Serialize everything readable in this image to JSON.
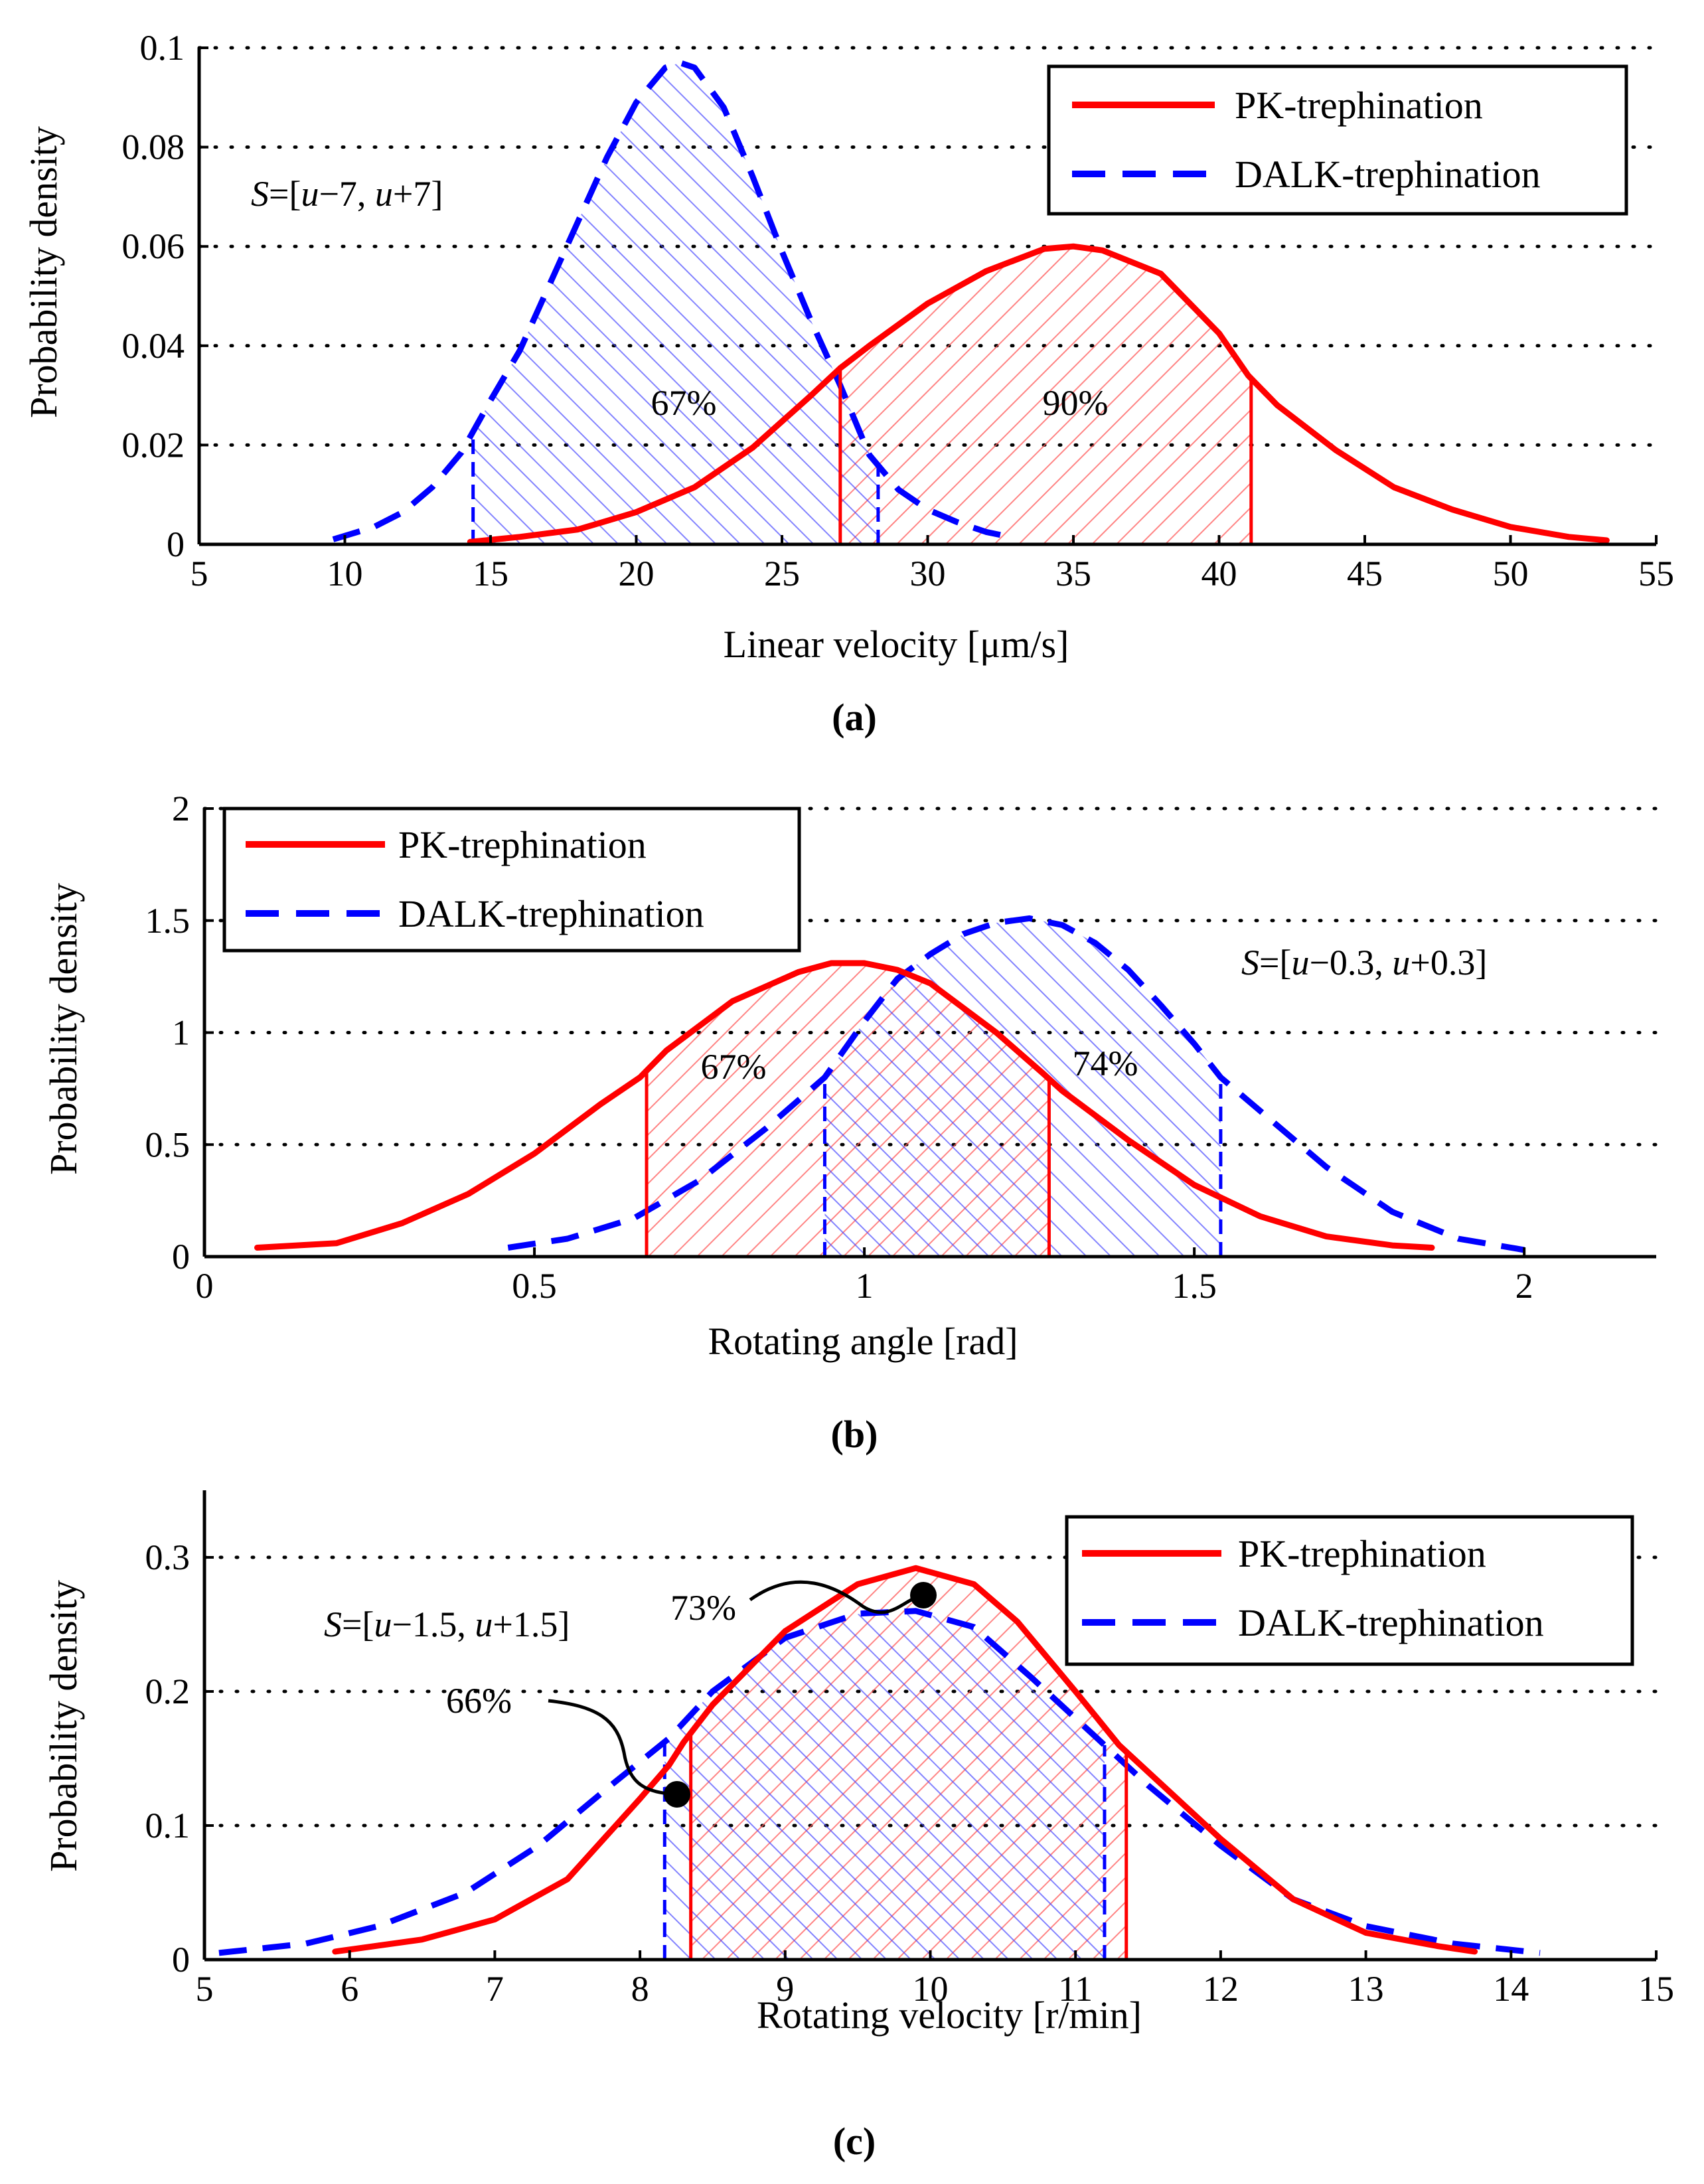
{
  "chart_data": [
    {
      "id": "a",
      "type": "line",
      "caption": "(a)",
      "xlabel": "Linear velocity [μm/s]",
      "ylabel": "Probability density",
      "xlim": [
        5,
        55
      ],
      "ylim": [
        0,
        0.1
      ],
      "xticks": [
        5,
        10,
        15,
        20,
        25,
        30,
        35,
        40,
        45,
        50,
        55
      ],
      "yticks": [
        0,
        0.02,
        0.04,
        0.06,
        0.08,
        0.1
      ],
      "xtick_labels": [
        "5",
        "10",
        "15",
        "20",
        "25",
        "30",
        "35",
        "40",
        "45",
        "50",
        "55"
      ],
      "ytick_labels": [
        "0",
        "0.02",
        "0.04",
        "0.06",
        "0.08",
        "0.1"
      ],
      "grid": "dotted horizontal",
      "legend_position": "top-right",
      "legend": [
        "PK-trephination",
        "DALK-trephination"
      ],
      "interval_text_parts": [
        "S",
        "=[",
        "u",
        "−7, ",
        "u",
        "+7]"
      ],
      "series": [
        {
          "name": "PK-trephination",
          "color": "#ff0000",
          "style": "solid",
          "x": [
            14.3,
            16,
            18,
            20,
            22,
            24,
            26,
            27,
            28,
            30,
            32,
            34,
            35,
            36,
            38,
            40,
            41,
            42,
            44,
            46,
            48,
            50,
            52,
            53.3
          ],
          "y": [
            0.0005,
            0.0015,
            0.003,
            0.0065,
            0.0115,
            0.0195,
            0.03,
            0.0355,
            0.04,
            0.0485,
            0.055,
            0.0595,
            0.06,
            0.0592,
            0.0545,
            0.0425,
            0.034,
            0.028,
            0.019,
            0.0115,
            0.007,
            0.0035,
            0.0015,
            0.0008
          ],
          "shade_range": [
            27,
            41.1
          ],
          "shade_label": "90%"
        },
        {
          "name": "DALK-trephination",
          "color": "#0000ff",
          "style": "dashed",
          "x": [
            9.6,
            11,
            12,
            13,
            14,
            15,
            16,
            17,
            18,
            19,
            20,
            21,
            21.5,
            22,
            23,
            24,
            25,
            26,
            27,
            28,
            29,
            30,
            31,
            32,
            33
          ],
          "y": [
            0.001,
            0.0035,
            0.0065,
            0.0115,
            0.0185,
            0.029,
            0.039,
            0.052,
            0.065,
            0.078,
            0.089,
            0.096,
            0.097,
            0.096,
            0.088,
            0.074,
            0.059,
            0.045,
            0.032,
            0.018,
            0.011,
            0.007,
            0.0045,
            0.0025,
            0.0013
          ],
          "shade_range": [
            14.4,
            28.3
          ],
          "shade_label": "67%"
        }
      ]
    },
    {
      "id": "b",
      "type": "line",
      "caption": "(b)",
      "xlabel": "Rotating angle  [rad]",
      "ylabel": "Probability density",
      "xlim": [
        0,
        2.2
      ],
      "ylim": [
        0,
        2
      ],
      "xticks": [
        0,
        0.5,
        1,
        1.5,
        2
      ],
      "yticks": [
        0,
        0.5,
        1,
        1.5,
        2
      ],
      "xtick_labels": [
        "0",
        "0.5",
        "1",
        "1.5",
        "2"
      ],
      "ytick_labels": [
        "0",
        "0.5",
        "1",
        "1.5",
        "2"
      ],
      "grid": "dotted horizontal",
      "legend_position": "top-left",
      "legend": [
        "PK-trephination",
        "DALK-trephination"
      ],
      "interval_text_parts": [
        "S",
        "=[",
        "u",
        "−0.3, ",
        "u",
        "+0.3]"
      ],
      "series": [
        {
          "name": "PK-trephination",
          "color": "#ff0000",
          "style": "solid",
          "x": [
            0.08,
            0.2,
            0.3,
            0.4,
            0.5,
            0.6,
            0.66,
            0.7,
            0.8,
            0.9,
            0.95,
            1.0,
            1.05,
            1.1,
            1.2,
            1.27,
            1.3,
            1.4,
            1.5,
            1.6,
            1.7,
            1.8,
            1.86
          ],
          "y": [
            0.04,
            0.06,
            0.15,
            0.28,
            0.46,
            0.68,
            0.8,
            0.92,
            1.14,
            1.27,
            1.31,
            1.31,
            1.28,
            1.22,
            1.0,
            0.82,
            0.74,
            0.52,
            0.32,
            0.18,
            0.09,
            0.05,
            0.04
          ],
          "shade_range": [
            0.67,
            1.28
          ],
          "shade_label": "67%"
        },
        {
          "name": "DALK-trephination",
          "color": "#0000ff",
          "style": "dashed",
          "x": [
            0.46,
            0.55,
            0.65,
            0.75,
            0.85,
            0.94,
            1.0,
            1.05,
            1.1,
            1.15,
            1.2,
            1.25,
            1.3,
            1.35,
            1.4,
            1.45,
            1.5,
            1.54,
            1.6,
            1.7,
            1.8,
            1.9,
            2.0
          ],
          "y": [
            0.04,
            0.08,
            0.17,
            0.34,
            0.57,
            0.8,
            1.05,
            1.24,
            1.35,
            1.44,
            1.49,
            1.51,
            1.48,
            1.4,
            1.28,
            1.12,
            0.95,
            0.8,
            0.65,
            0.4,
            0.2,
            0.08,
            0.03
          ],
          "shade_range": [
            0.94,
            1.54
          ],
          "shade_label": "74%"
        }
      ]
    },
    {
      "id": "c",
      "type": "line",
      "caption": "(c)",
      "xlabel": "Rotating velocity [r/min]",
      "ylabel": "Probability density",
      "xlim": [
        5,
        15
      ],
      "ylim": [
        0,
        0.35
      ],
      "xticks": [
        5,
        6,
        7,
        8,
        9,
        10,
        11,
        12,
        13,
        14,
        15
      ],
      "yticks": [
        0,
        0.1,
        0.2,
        0.3
      ],
      "xtick_labels": [
        "5",
        "6",
        "7",
        "8",
        "9",
        "10",
        "11",
        "12",
        "13",
        "14",
        "15"
      ],
      "ytick_labels": [
        "0",
        "0.1",
        "0.2",
        "0.3"
      ],
      "grid": "dotted horizontal",
      "legend_position": "top-right",
      "legend": [
        "PK-trephination",
        "DALK-trephination"
      ],
      "interval_text_parts": [
        "S",
        "=[",
        "u",
        "−1.5, ",
        "u",
        "+1.5]"
      ],
      "series": [
        {
          "name": "PK-trephination",
          "color": "#ff0000",
          "style": "solid",
          "x": [
            5.9,
            6.5,
            7,
            7.5,
            8,
            8.2,
            8.3,
            8.5,
            9,
            9.5,
            9.9,
            10.3,
            10.6,
            11,
            11.3,
            11.5,
            12,
            12.5,
            13,
            13.5,
            13.75
          ],
          "y": [
            0.006,
            0.015,
            0.03,
            0.06,
            0.12,
            0.145,
            0.162,
            0.19,
            0.245,
            0.28,
            0.292,
            0.28,
            0.252,
            0.2,
            0.16,
            0.14,
            0.09,
            0.045,
            0.02,
            0.01,
            0.006
          ],
          "shade_range": [
            8.35,
            11.35
          ],
          "shade_label": "73%"
        },
        {
          "name": "DALK-trephination",
          "color": "#0000ff",
          "style": "dashed",
          "x": [
            5.1,
            5.7,
            6.2,
            6.8,
            7.3,
            7.8,
            8.2,
            8.5,
            9,
            9.5,
            9.9,
            10.3,
            10.7,
            11.2,
            11.5,
            12,
            12.5,
            13,
            13.6,
            14.2
          ],
          "y": [
            0.005,
            0.012,
            0.025,
            0.05,
            0.085,
            0.13,
            0.165,
            0.2,
            0.24,
            0.258,
            0.26,
            0.248,
            0.21,
            0.16,
            0.13,
            0.085,
            0.045,
            0.025,
            0.012,
            0.005
          ],
          "shade_range": [
            8.17,
            11.2
          ],
          "shade_label": "66%"
        }
      ]
    }
  ]
}
